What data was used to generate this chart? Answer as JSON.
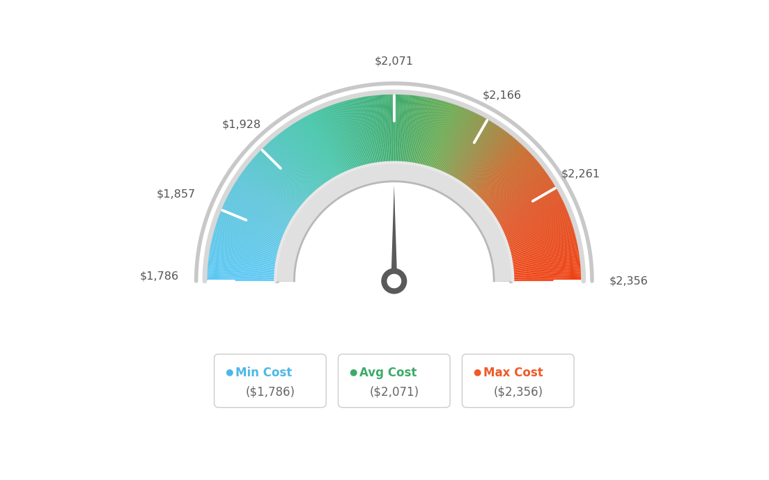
{
  "min_val": 1786,
  "max_val": 2356,
  "avg_val": 2071,
  "tick_labels": [
    "$1,786",
    "$1,857",
    "$1,928",
    "$2,071",
    "$2,166",
    "$2,261",
    "$2,356"
  ],
  "tick_values": [
    1786,
    1857,
    1928,
    2071,
    2166,
    2261,
    2356
  ],
  "legend_items": [
    {
      "label": "Min Cost",
      "value": "($1,786)",
      "color": "#4db8e8"
    },
    {
      "label": "Avg Cost",
      "value": "($2,071)",
      "color": "#3daa6b"
    },
    {
      "label": "Max Cost",
      "value": "($2,356)",
      "color": "#f05a28"
    }
  ],
  "colors_at_fracs": [
    [
      0.0,
      "#5bc8f5"
    ],
    [
      0.18,
      "#5bc4d8"
    ],
    [
      0.35,
      "#42c4a8"
    ],
    [
      0.5,
      "#3daa6b"
    ],
    [
      0.6,
      "#6aaa50"
    ],
    [
      0.68,
      "#9a8840"
    ],
    [
      0.75,
      "#c86828"
    ],
    [
      0.85,
      "#e05020"
    ],
    [
      1.0,
      "#f04010"
    ]
  ],
  "background_color": "#ffffff",
  "needle_color": "#5a5a5a",
  "outer_border_color": "#d0d0d0",
  "inner_border_color": "#c8c8c8",
  "inner_white_color": "#f0f0f0"
}
